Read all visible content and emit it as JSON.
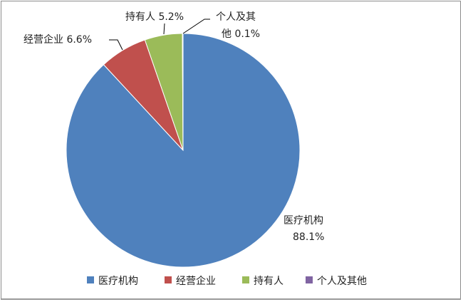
{
  "chart_data": {
    "type": "pie",
    "title": "",
    "start_angle": "12 o'clock",
    "direction": "clockwise",
    "slices": [
      {
        "label": "医疗机构",
        "value": 88.1,
        "value_label": "88.1%",
        "color": "#4F81BD"
      },
      {
        "label": "经营企业",
        "value": 6.6,
        "value_label": "6.6%",
        "color": "#C0504D"
      },
      {
        "label": "持有人",
        "value": 5.2,
        "value_label": "5.2%",
        "color": "#9BBB59"
      },
      {
        "label": "个人及其他",
        "value": 0.1,
        "value_label": "0.1%",
        "color": "#8064A2"
      }
    ],
    "data_labels": {
      "yiliao_name": "医疗机构",
      "yiliao_value": "88.1%",
      "jingying": "经营企业  6.6%",
      "chiyouren": "持有人  5.2%",
      "geren_line1": "个人及其",
      "geren_line2": "他 0.1%"
    },
    "legend": {
      "placement": "bottom",
      "entries": [
        "医疗机构",
        "经营企业",
        "持有人",
        "个人及其他"
      ]
    }
  }
}
